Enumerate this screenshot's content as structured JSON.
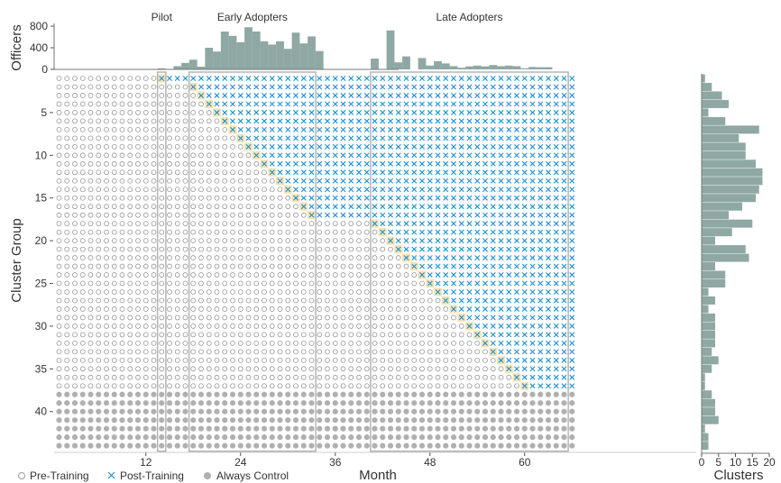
{
  "chart_data": {
    "type": "scatter",
    "description": "Staggered-adoption rollout grid: months (x) by cluster groups (y), with treatment status per cell, marginal bar of officers per month (top) and clusters per group (right)",
    "xlabel": "Month",
    "ylabel": "Cluster Group",
    "x_ticks": [
      12,
      24,
      36,
      48,
      60
    ],
    "y_ticks": [
      5,
      10,
      15,
      20,
      25,
      30,
      35,
      40
    ],
    "xlim": [
      1,
      66
    ],
    "ylim": [
      1,
      44
    ],
    "groups_total": 44,
    "never_treated_from_group": 38,
    "phases": [
      {
        "label": "Pilot",
        "start_month": 14,
        "end_month": 14
      },
      {
        "label": "Early Adopters",
        "start_month": 18,
        "end_month": 33
      },
      {
        "label": "Late Adopters",
        "start_month": 41,
        "end_month": 65
      }
    ],
    "adoption_start": [
      {
        "group": 1,
        "month": 14
      },
      {
        "group": 2,
        "month": 18
      },
      {
        "group": 3,
        "month": 19
      },
      {
        "group": 4,
        "month": 20
      },
      {
        "group": 5,
        "month": 21
      },
      {
        "group": 6,
        "month": 22
      },
      {
        "group": 7,
        "month": 23
      },
      {
        "group": 8,
        "month": 24
      },
      {
        "group": 9,
        "month": 25
      },
      {
        "group": 10,
        "month": 26
      },
      {
        "group": 11,
        "month": 27
      },
      {
        "group": 12,
        "month": 28
      },
      {
        "group": 13,
        "month": 29
      },
      {
        "group": 14,
        "month": 30
      },
      {
        "group": 15,
        "month": 31
      },
      {
        "group": 16,
        "month": 32
      },
      {
        "group": 17,
        "month": 33
      },
      {
        "group": 18,
        "month": 41
      },
      {
        "group": 19,
        "month": 42
      },
      {
        "group": 20,
        "month": 43
      },
      {
        "group": 21,
        "month": 44
      },
      {
        "group": 22,
        "month": 45
      },
      {
        "group": 23,
        "month": 46
      },
      {
        "group": 24,
        "month": 47
      },
      {
        "group": 25,
        "month": 48
      },
      {
        "group": 26,
        "month": 49
      },
      {
        "group": 27,
        "month": 50
      },
      {
        "group": 28,
        "month": 51
      },
      {
        "group": 29,
        "month": 52
      },
      {
        "group": 30,
        "month": 53
      },
      {
        "group": 31,
        "month": 54
      },
      {
        "group": 32,
        "month": 55
      },
      {
        "group": 33,
        "month": 56
      },
      {
        "group": 34,
        "month": 57
      },
      {
        "group": 35,
        "month": 58
      },
      {
        "group": 36,
        "month": 59
      },
      {
        "group": 37,
        "month": 60
      }
    ],
    "legend": [
      {
        "label": "Pre-Training",
        "symbol": "open-circle",
        "color": "#9a9a9a"
      },
      {
        "label": "Post-Training",
        "symbol": "x",
        "color": "#1f8fd0"
      },
      {
        "label": "Always Control",
        "symbol": "filled-circle",
        "color": "#b0b0b0"
      }
    ],
    "top_marginal": {
      "ylabel": "Officers",
      "ticks": [
        0,
        400,
        800
      ],
      "ylim": [
        0,
        900
      ],
      "months": [
        14,
        16,
        17,
        18,
        19,
        20,
        21,
        22,
        23,
        24,
        25,
        26,
        27,
        28,
        29,
        30,
        31,
        32,
        33,
        34,
        41,
        43,
        44,
        45,
        47,
        48,
        49,
        50,
        51,
        52,
        53,
        54,
        55,
        56,
        57,
        58,
        59,
        60,
        61,
        62,
        63
      ],
      "values": [
        20,
        60,
        120,
        180,
        50,
        400,
        330,
        700,
        620,
        500,
        780,
        700,
        520,
        460,
        520,
        380,
        680,
        480,
        610,
        340,
        200,
        720,
        130,
        240,
        210,
        70,
        150,
        110,
        60,
        30,
        55,
        70,
        55,
        80,
        60,
        70,
        60,
        20,
        45,
        40,
        40
      ]
    },
    "right_marginal": {
      "xlabel": "Clusters",
      "ticks": [
        0,
        5,
        10,
        15,
        20
      ],
      "xlim": [
        0,
        20
      ],
      "groups": [
        1,
        2,
        3,
        4,
        5,
        6,
        7,
        8,
        9,
        10,
        11,
        12,
        13,
        14,
        15,
        16,
        17,
        18,
        19,
        20,
        21,
        22,
        23,
        24,
        25,
        26,
        27,
        28,
        29,
        30,
        31,
        32,
        33,
        34,
        35,
        36,
        37,
        38,
        39,
        40,
        41,
        42,
        43,
        44
      ],
      "values": [
        1,
        3,
        6,
        8,
        2,
        7,
        17,
        11,
        13,
        13,
        16,
        18,
        18,
        17,
        16,
        12,
        8,
        15,
        9,
        4,
        13,
        14,
        4,
        7,
        7,
        2,
        4,
        2,
        4,
        4,
        4,
        4,
        3,
        5,
        3,
        1,
        1,
        3,
        4,
        4,
        5,
        1,
        2,
        2
      ]
    },
    "colors": {
      "grid_dot": "#9a9a9a",
      "treated": "#1f8fd0",
      "control": "#b0b0b0",
      "onset_highlight": "#f8e3b4",
      "bar": "#8fa8a3",
      "phase_box": "#b5b5b5"
    }
  }
}
